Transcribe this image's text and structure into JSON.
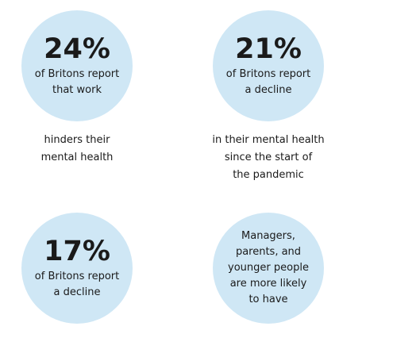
{
  "stats": [
    {
      "percent": "24%",
      "circle_lines": [
        "of Britons report",
        "that work"
      ],
      "below_lines": [
        "hinders their",
        "mental health"
      ]
    },
    {
      "percent": "21%",
      "circle_lines": [
        "of Britons report",
        "a decline"
      ],
      "below_lines": [
        "in their mental health",
        "since the start of",
        "the pandemic"
      ]
    },
    {
      "percent": "17%",
      "circle_lines": [
        "of Britons report",
        "a decline"
      ],
      "below_lines": []
    },
    {
      "percent": "",
      "circle_lines": [
        "Managers,",
        "parents, and",
        "younger people",
        "are more likely",
        "to have"
      ],
      "below_lines": []
    }
  ],
  "colors": {
    "circle_fill": "#cfe7f5",
    "text": "#1a1a1a"
  }
}
